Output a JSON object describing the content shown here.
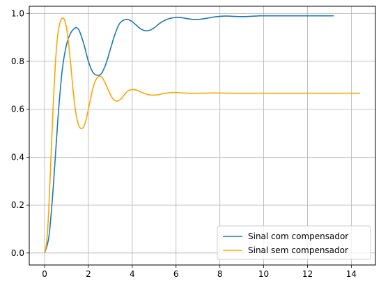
{
  "chart_data": {
    "type": "line",
    "title": "",
    "xlabel": "",
    "ylabel": "",
    "xlim": [
      -0.7,
      15.1
    ],
    "ylim": [
      -0.05,
      1.03
    ],
    "xticks": [
      0,
      2,
      4,
      6,
      8,
      10,
      12,
      14
    ],
    "yticks": [
      0.0,
      0.2,
      0.4,
      0.6,
      0.8,
      1.0
    ],
    "xtick_labels": [
      "0",
      "2",
      "4",
      "6",
      "8",
      "10",
      "12",
      "14"
    ],
    "ytick_labels": [
      "0.0",
      "0.2",
      "0.4",
      "0.6",
      "0.8",
      "1.0"
    ],
    "grid": true,
    "legend_position": "lower-right",
    "series": [
      {
        "name": "Sinal com compensador",
        "color": "#1f77b4",
        "x": [
          0,
          0.2,
          0.4,
          0.6,
          0.8,
          1.0,
          1.2,
          1.4,
          1.5,
          1.6,
          1.8,
          2.0,
          2.2,
          2.4,
          2.6,
          2.8,
          3.0,
          3.2,
          3.4,
          3.6,
          3.8,
          4.0,
          4.2,
          4.4,
          4.6,
          4.8,
          5.0,
          5.2,
          5.4,
          5.6,
          5.8,
          6.0,
          6.2,
          6.4,
          6.6,
          6.8,
          7.0,
          7.2,
          7.4,
          7.6,
          7.8,
          8.0,
          8.2,
          8.4,
          8.6,
          8.8,
          9.0,
          9.2,
          9.4,
          9.6,
          9.8,
          10.0,
          10.2,
          10.4,
          10.6,
          10.8,
          11.0,
          11.2,
          11.4,
          11.6,
          11.8,
          12.0,
          12.2,
          12.4,
          12.6,
          12.8,
          13.0,
          13.2
        ],
        "y": [
          0.0,
          0.07,
          0.28,
          0.55,
          0.76,
          0.87,
          0.92,
          0.94,
          0.938,
          0.925,
          0.87,
          0.8,
          0.755,
          0.742,
          0.75,
          0.79,
          0.85,
          0.91,
          0.955,
          0.972,
          0.975,
          0.966,
          0.95,
          0.935,
          0.928,
          0.93,
          0.94,
          0.955,
          0.967,
          0.976,
          0.981,
          0.983,
          0.983,
          0.98,
          0.977,
          0.975,
          0.975,
          0.977,
          0.98,
          0.983,
          0.986,
          0.988,
          0.989,
          0.989,
          0.988,
          0.987,
          0.987,
          0.987,
          0.988,
          0.989,
          0.99,
          0.99,
          0.99,
          0.99,
          0.99,
          0.99,
          0.99,
          0.99,
          0.99,
          0.99,
          0.99,
          0.99,
          0.99,
          0.99,
          0.99,
          0.99,
          0.99,
          0.99
        ]
      },
      {
        "name": "Sinal sem compensador",
        "color": "#ffa500",
        "x": [
          0,
          0.1,
          0.2,
          0.3,
          0.4,
          0.5,
          0.6,
          0.7,
          0.8,
          0.9,
          1.0,
          1.1,
          1.2,
          1.3,
          1.4,
          1.5,
          1.6,
          1.7,
          1.8,
          1.9,
          2.0,
          2.1,
          2.2,
          2.3,
          2.4,
          2.5,
          2.6,
          2.7,
          2.8,
          2.9,
          3.0,
          3.1,
          3.2,
          3.3,
          3.4,
          3.5,
          3.6,
          3.7,
          3.8,
          3.9,
          4.0,
          4.2,
          4.4,
          4.6,
          4.8,
          5.0,
          5.2,
          5.4,
          5.6,
          5.8,
          6.0,
          6.2,
          6.4,
          6.6,
          6.8,
          7.0,
          7.5,
          8.0,
          8.5,
          9.0,
          10.0,
          11.0,
          12.0,
          13.0,
          14.0,
          14.4
        ],
        "y": [
          0.0,
          0.05,
          0.2,
          0.42,
          0.63,
          0.8,
          0.91,
          0.96,
          0.98,
          0.975,
          0.94,
          0.87,
          0.78,
          0.68,
          0.6,
          0.55,
          0.525,
          0.52,
          0.53,
          0.56,
          0.6,
          0.645,
          0.685,
          0.715,
          0.732,
          0.738,
          0.735,
          0.722,
          0.703,
          0.682,
          0.662,
          0.646,
          0.637,
          0.634,
          0.637,
          0.645,
          0.656,
          0.667,
          0.676,
          0.681,
          0.682,
          0.68,
          0.672,
          0.665,
          0.66,
          0.659,
          0.661,
          0.665,
          0.668,
          0.67,
          0.67,
          0.669,
          0.668,
          0.667,
          0.667,
          0.667,
          0.668,
          0.668,
          0.667,
          0.667,
          0.667,
          0.667,
          0.667,
          0.667,
          0.667,
          0.667
        ]
      }
    ]
  }
}
